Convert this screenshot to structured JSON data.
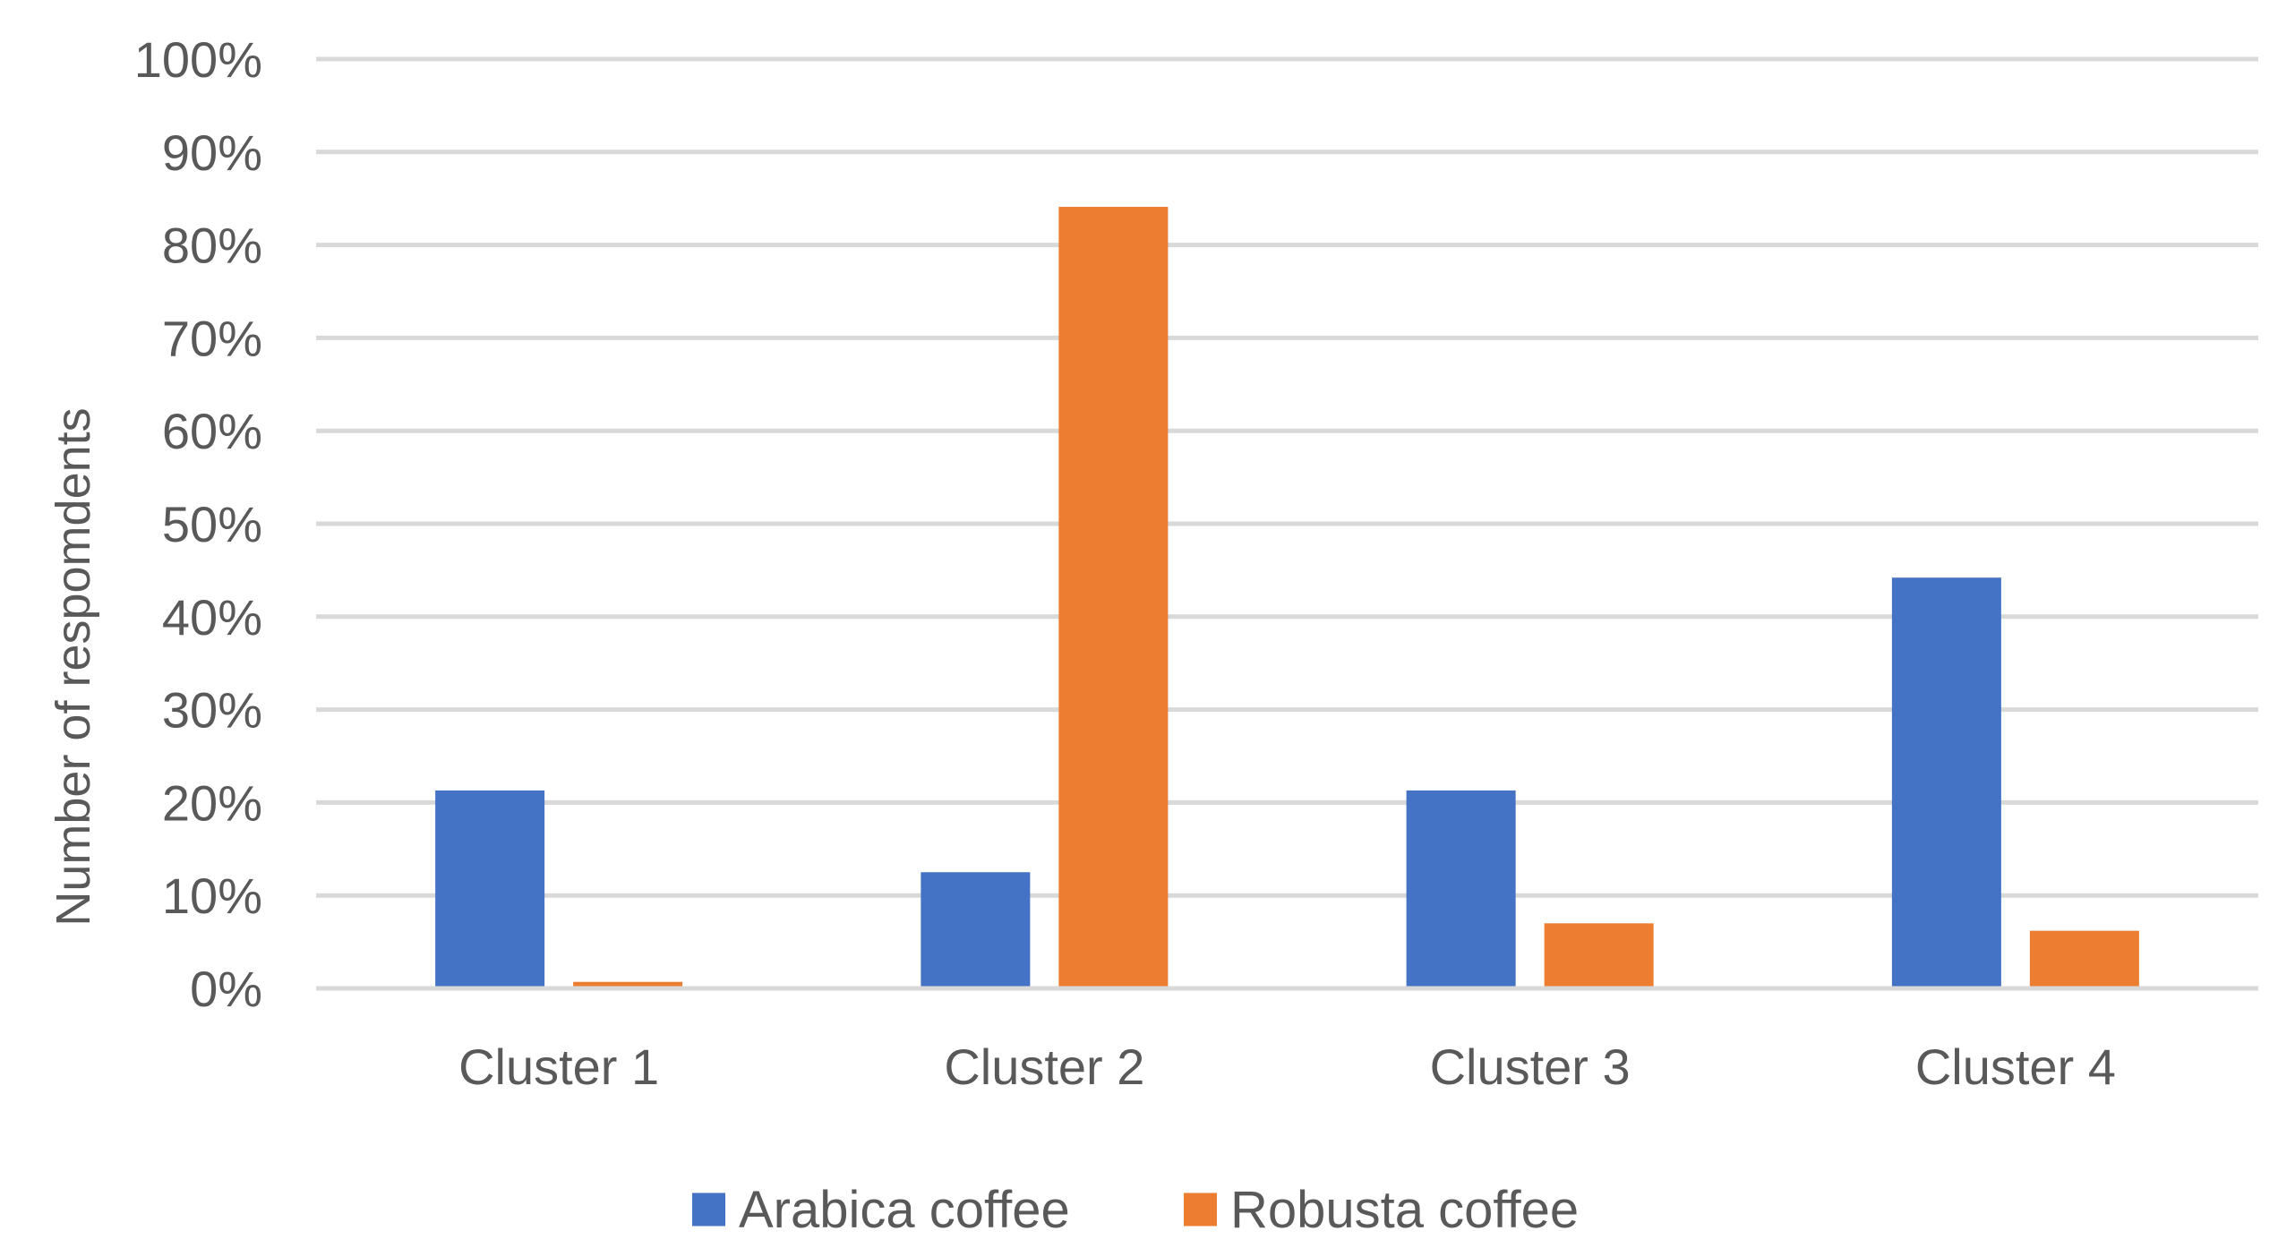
{
  "chart_data": {
    "type": "bar",
    "title": "",
    "xlabel": "",
    "ylabel": "Number of respomdents",
    "categories": [
      "Cluster 1",
      "Cluster 2",
      "Cluster 3",
      "Cluster 4"
    ],
    "series": [
      {
        "name": "Arabica coffee",
        "color": "#4472C4",
        "values": [
          21.3,
          12.5,
          21.3,
          44.2
        ]
      },
      {
        "name": "Robusta coffee",
        "color": "#ED7D31",
        "values": [
          0.7,
          84.1,
          7.0,
          6.2
        ]
      }
    ],
    "yticks": [
      "0%",
      "10%",
      "20%",
      "30%",
      "40%",
      "50%",
      "60%",
      "70%",
      "80%",
      "90%",
      "100%"
    ],
    "ylim": [
      0,
      100
    ],
    "y_unit": "%",
    "grid": true,
    "gridline_color": "#D9D9D9",
    "legend_position": "bottom"
  }
}
